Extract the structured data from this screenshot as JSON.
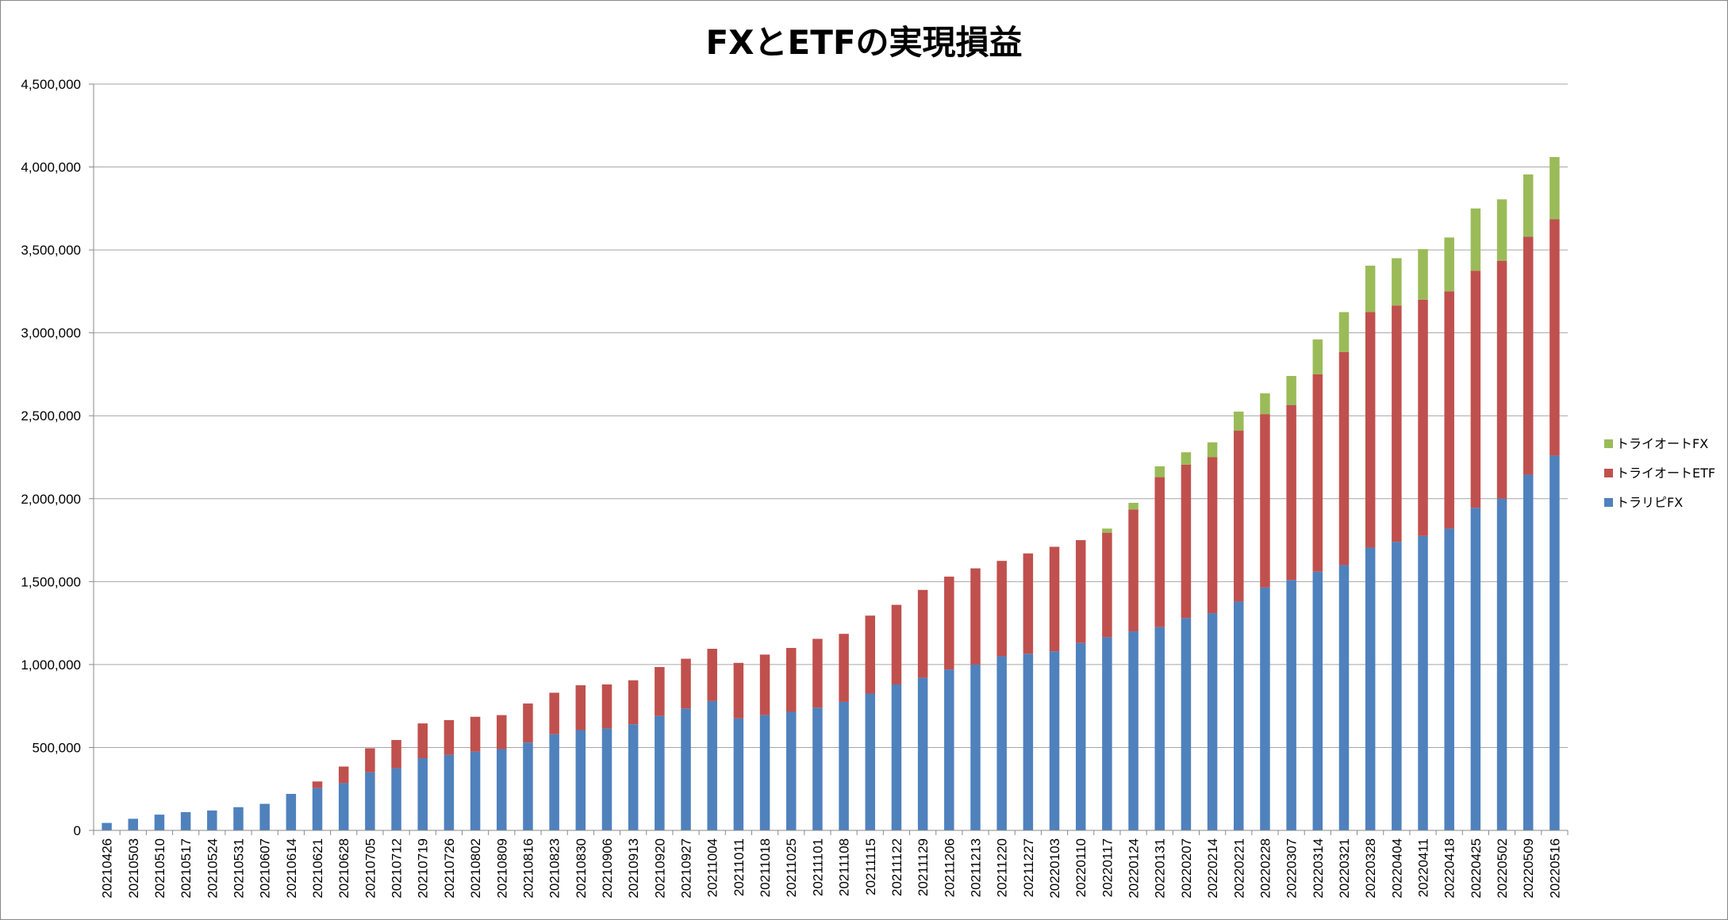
{
  "chart_data": {
    "type": "bar",
    "stacked": true,
    "title": "FXとETFの実現損益",
    "xlabel": "",
    "ylabel": "",
    "ylim": [
      0,
      4500000
    ],
    "y_ticks": [
      0,
      500000,
      1000000,
      1500000,
      2000000,
      2500000,
      3000000,
      3500000,
      4000000,
      4500000
    ],
    "y_tick_labels": [
      "0",
      "500,000",
      "1,000,000",
      "1,500,000",
      "2,000,000",
      "2,500,000",
      "3,000,000",
      "3,500,000",
      "4,000,000",
      "4,500,000"
    ],
    "grid": true,
    "legend_position": "right",
    "categories": [
      "20210426",
      "20210503",
      "20210510",
      "20210517",
      "20210524",
      "20210531",
      "20210607",
      "20210614",
      "20210621",
      "20210628",
      "20210705",
      "20210712",
      "20210719",
      "20210726",
      "20210802",
      "20210809",
      "20210816",
      "20210823",
      "20210830",
      "20210906",
      "20210913",
      "20210920",
      "20210927",
      "20211004",
      "20211011",
      "20211018",
      "20211025",
      "20211101",
      "20211108",
      "20211115",
      "20211122",
      "20211129",
      "20211206",
      "20211213",
      "20211220",
      "20211227",
      "20220103",
      "20220110",
      "20220117",
      "20220124",
      "20220131",
      "20220207",
      "20220214",
      "20220221",
      "20220228",
      "20220307",
      "20220314",
      "20220321",
      "20220328",
      "20220404",
      "20220411",
      "20220418",
      "20220425",
      "20220502",
      "20220509",
      "20220516"
    ],
    "series": [
      {
        "name": "トラリピFX",
        "color": "#4f81bd",
        "values": [
          45000,
          70000,
          95000,
          110000,
          120000,
          140000,
          160000,
          220000,
          255000,
          285000,
          350000,
          375000,
          435000,
          455000,
          475000,
          490000,
          530000,
          580000,
          605000,
          615000,
          640000,
          690000,
          735000,
          780000,
          675000,
          695000,
          715000,
          740000,
          775000,
          825000,
          880000,
          920000,
          970000,
          1000000,
          1050000,
          1065000,
          1080000,
          1130000,
          1165000,
          1200000,
          1225000,
          1280000,
          1310000,
          1380000,
          1465000,
          1510000,
          1560000,
          1600000,
          1705000,
          1740000,
          1775000,
          1820000,
          1945000,
          2000000,
          2145000,
          2260000
        ]
      },
      {
        "name": "トライオートETF",
        "color": "#c0504d",
        "values": [
          0,
          0,
          0,
          0,
          0,
          0,
          0,
          0,
          40000,
          100000,
          145000,
          170000,
          210000,
          210000,
          210000,
          205000,
          235000,
          250000,
          270000,
          265000,
          265000,
          295000,
          300000,
          315000,
          335000,
          365000,
          385000,
          415000,
          410000,
          470000,
          480000,
          530000,
          560000,
          580000,
          575000,
          605000,
          630000,
          620000,
          630000,
          735000,
          905000,
          925000,
          940000,
          1030000,
          1045000,
          1055000,
          1190000,
          1285000,
          1420000,
          1425000,
          1425000,
          1430000,
          1430000,
          1435000,
          1435000,
          1425000
        ]
      },
      {
        "name": "トライオートFX",
        "color": "#9bbb59",
        "values": [
          0,
          0,
          0,
          0,
          0,
          0,
          0,
          0,
          0,
          0,
          0,
          0,
          0,
          0,
          0,
          0,
          0,
          0,
          0,
          0,
          0,
          0,
          0,
          0,
          0,
          0,
          0,
          0,
          0,
          0,
          0,
          0,
          0,
          0,
          0,
          0,
          0,
          0,
          25000,
          40000,
          65000,
          75000,
          90000,
          115000,
          125000,
          175000,
          210000,
          240000,
          280000,
          285000,
          305000,
          325000,
          375000,
          370000,
          375000,
          375000
        ]
      }
    ]
  }
}
